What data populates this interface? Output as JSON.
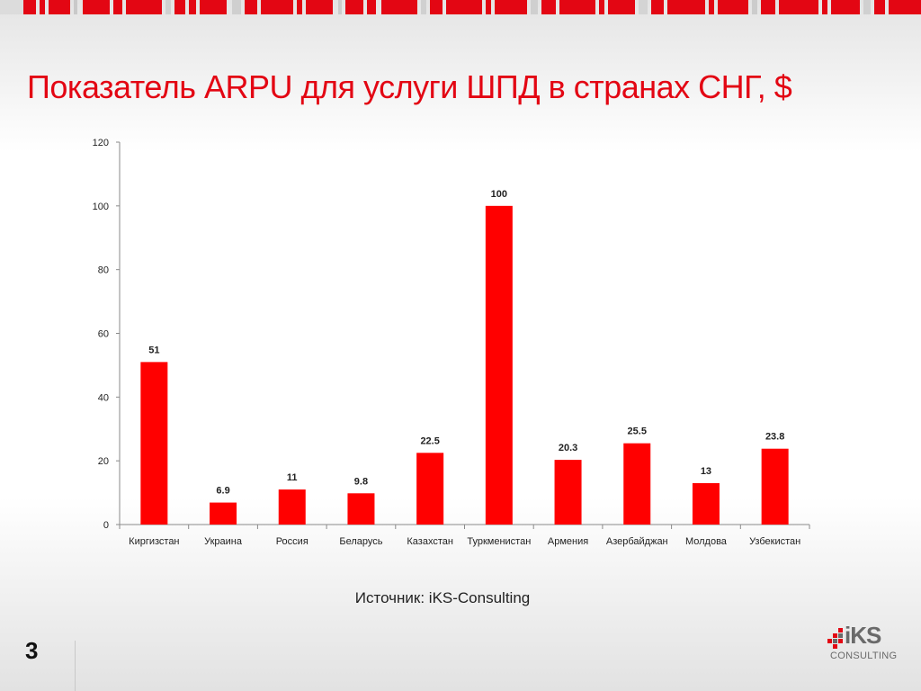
{
  "slide": {
    "title": "Показатель ARPU для услуги ШПД в странах СНГ, $",
    "source": "Источник: iKS-Consulting",
    "page_number": "3"
  },
  "brand": {
    "wordmark": "iKS",
    "subtitle": "CONSULTING",
    "accent_color": "#e30613",
    "gray_color": "#6a6a6a"
  },
  "chart_data": {
    "type": "bar",
    "categories": [
      "Киргизстан",
      "Украина",
      "Россия",
      "Беларусь",
      "Казахстан",
      "Туркменистан",
      "Армения",
      "Азербайджан",
      "Молдова",
      "Узбекистан"
    ],
    "values": [
      51,
      6.9,
      11,
      9.8,
      22.5,
      100,
      20.3,
      25.5,
      13,
      23.8
    ],
    "data_labels": [
      "51",
      "6.9",
      "11",
      "9.8",
      "22.5",
      "100",
      "20.3",
      "25.5",
      "13",
      "23.8"
    ],
    "title": "",
    "xlabel": "",
    "ylabel": "",
    "ylim": [
      0,
      120
    ],
    "yticks": [
      0,
      20,
      40,
      60,
      80,
      100,
      120
    ],
    "grid": false,
    "legend": "none",
    "bar_color": "#ff0000"
  }
}
